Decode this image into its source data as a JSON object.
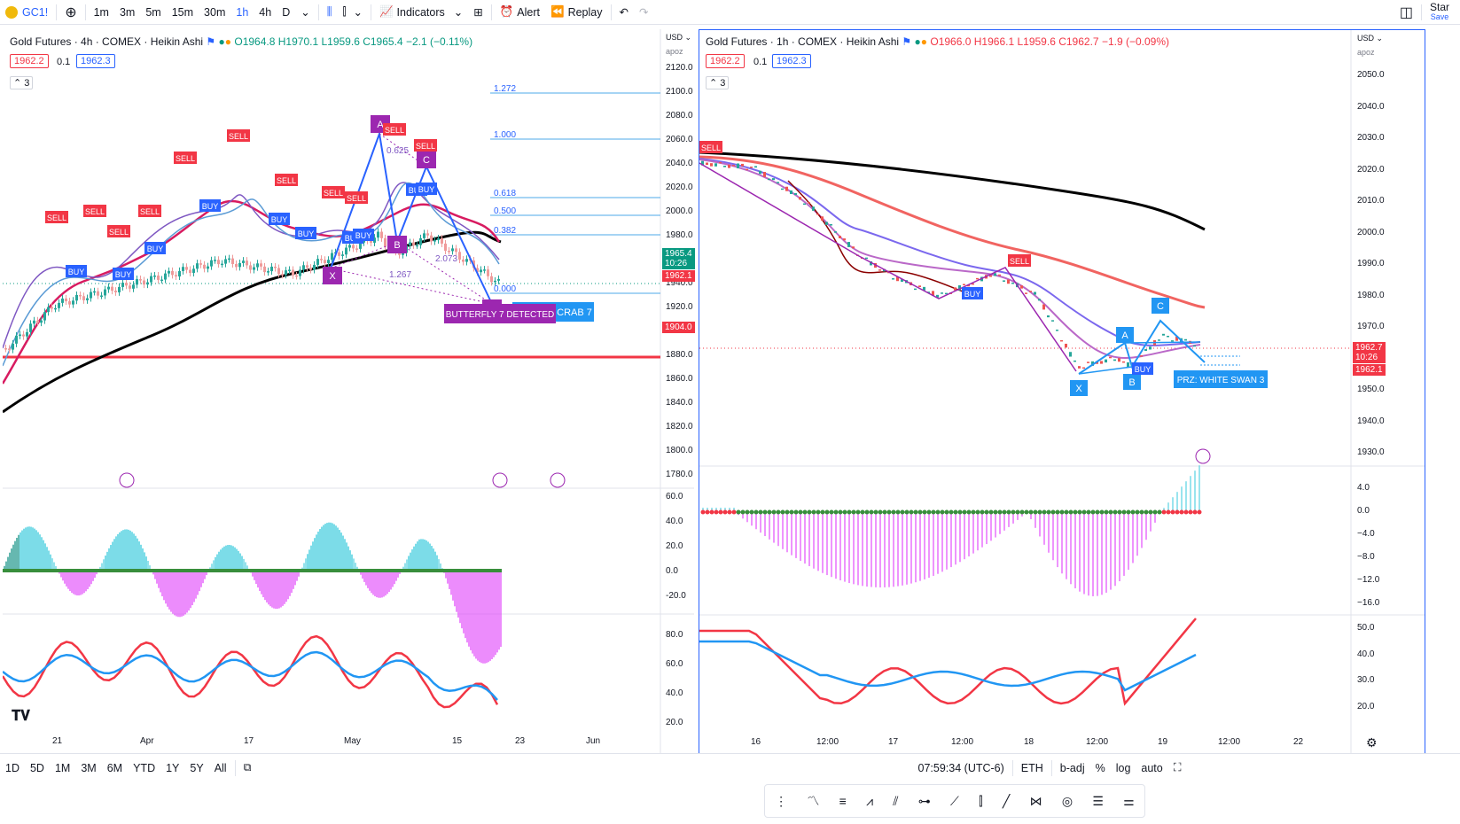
{
  "toolbar": {
    "symbol": "GC1!",
    "intervals": [
      "1m",
      "3m",
      "5m",
      "15m",
      "30m",
      "1h",
      "4h",
      "D"
    ],
    "active_interval": "1h",
    "indicators_label": "Indicators",
    "alert_label": "Alert",
    "replay_label": "Replay",
    "right_label": "Star",
    "save_label": "Save"
  },
  "left_chart": {
    "title": "Gold Futures · 4h · COMEX · Heikin Ashi",
    "ohlc": {
      "o": "O1964.8",
      "h": "H1970.1",
      "l": "L1959.6",
      "c": "C1965.4",
      "chg": "−2.1 (−0.11%)"
    },
    "bid": "1962.2",
    "spread": "0.1",
    "ask": "1962.3",
    "collapse_count": "3",
    "currency": "USD",
    "apoz": "apoz",
    "y_ticks": [
      "2120.0",
      "2100.0",
      "2080.0",
      "2060.0",
      "2040.0",
      "2020.0",
      "2000.0",
      "1980.0",
      "1960.0",
      "1940.0",
      "1920.0",
      "1900.0",
      "1880.0",
      "1860.0",
      "1840.0",
      "1820.0",
      "1800.0",
      "1780.0"
    ],
    "price_tags": {
      "current": "1965.4",
      "countdown": "10:26",
      "bid": "1962.1",
      "level": "1904.0"
    },
    "fib_levels": [
      "1.272",
      "1.000",
      "0.618",
      "0.500",
      "0.382",
      "0.000"
    ],
    "pattern_points": [
      "A",
      "C",
      "B",
      "X",
      "D"
    ],
    "ratios": [
      "0.625",
      "2.073",
      "1.267"
    ],
    "pattern_labels": {
      "butterfly": "BUTTERFLY 7 DETECTED",
      "crab": "CRAB 7"
    },
    "osc1_ticks": [
      "60.0",
      "40.0",
      "20.0",
      "0.0",
      "-20.0"
    ],
    "osc2_ticks": [
      "80.0",
      "60.0",
      "40.0",
      "20.0"
    ],
    "x_ticks": [
      "21",
      "Apr",
      "17",
      "May",
      "15",
      "23",
      "Jun"
    ]
  },
  "right_chart": {
    "title": "Gold Futures · 1h · COMEX · Heikin Ashi",
    "ohlc": {
      "o": "O1966.0",
      "h": "H1966.1",
      "l": "L1959.6",
      "c": "C1962.7",
      "chg": "−1.9 (−0.09%)"
    },
    "bid": "1962.2",
    "spread": "0.1",
    "ask": "1962.3",
    "collapse_count": "3",
    "currency": "USD",
    "apoz": "apoz",
    "y_ticks": [
      "2050.0",
      "2040.0",
      "2030.0",
      "2020.0",
      "2010.0",
      "2000.0",
      "1990.0",
      "1980.0",
      "1970.0",
      "1960.0",
      "1950.0",
      "1940.0",
      "1930.0"
    ],
    "price_tags": {
      "current": "1962.7",
      "countdown": "10:26",
      "bid": "1962.1"
    },
    "pattern_points": [
      "A",
      "C",
      "X",
      "B"
    ],
    "prz_label": "PRZ: WHITE SWAN 3",
    "osc1_ticks": [
      "4.0",
      "0.0",
      "−4.0",
      "−8.0",
      "−12.0",
      "−16.0"
    ],
    "osc2_ticks": [
      "50.0",
      "40.0",
      "30.0",
      "20.0"
    ],
    "x_ticks": [
      "16",
      "12:00",
      "17",
      "12:00",
      "18",
      "12:00",
      "19",
      "12:00",
      "22"
    ]
  },
  "signals": {
    "sell": "SELL",
    "buy": "BUY"
  },
  "bottom": {
    "ranges": [
      "1D",
      "5D",
      "1M",
      "3M",
      "6M",
      "YTD",
      "1Y",
      "5Y",
      "All"
    ],
    "time": "07:59:34 (UTC-6)",
    "session": "ETH",
    "b_adj": "b-adj",
    "percent": "%",
    "log": "log",
    "auto": "auto"
  }
}
